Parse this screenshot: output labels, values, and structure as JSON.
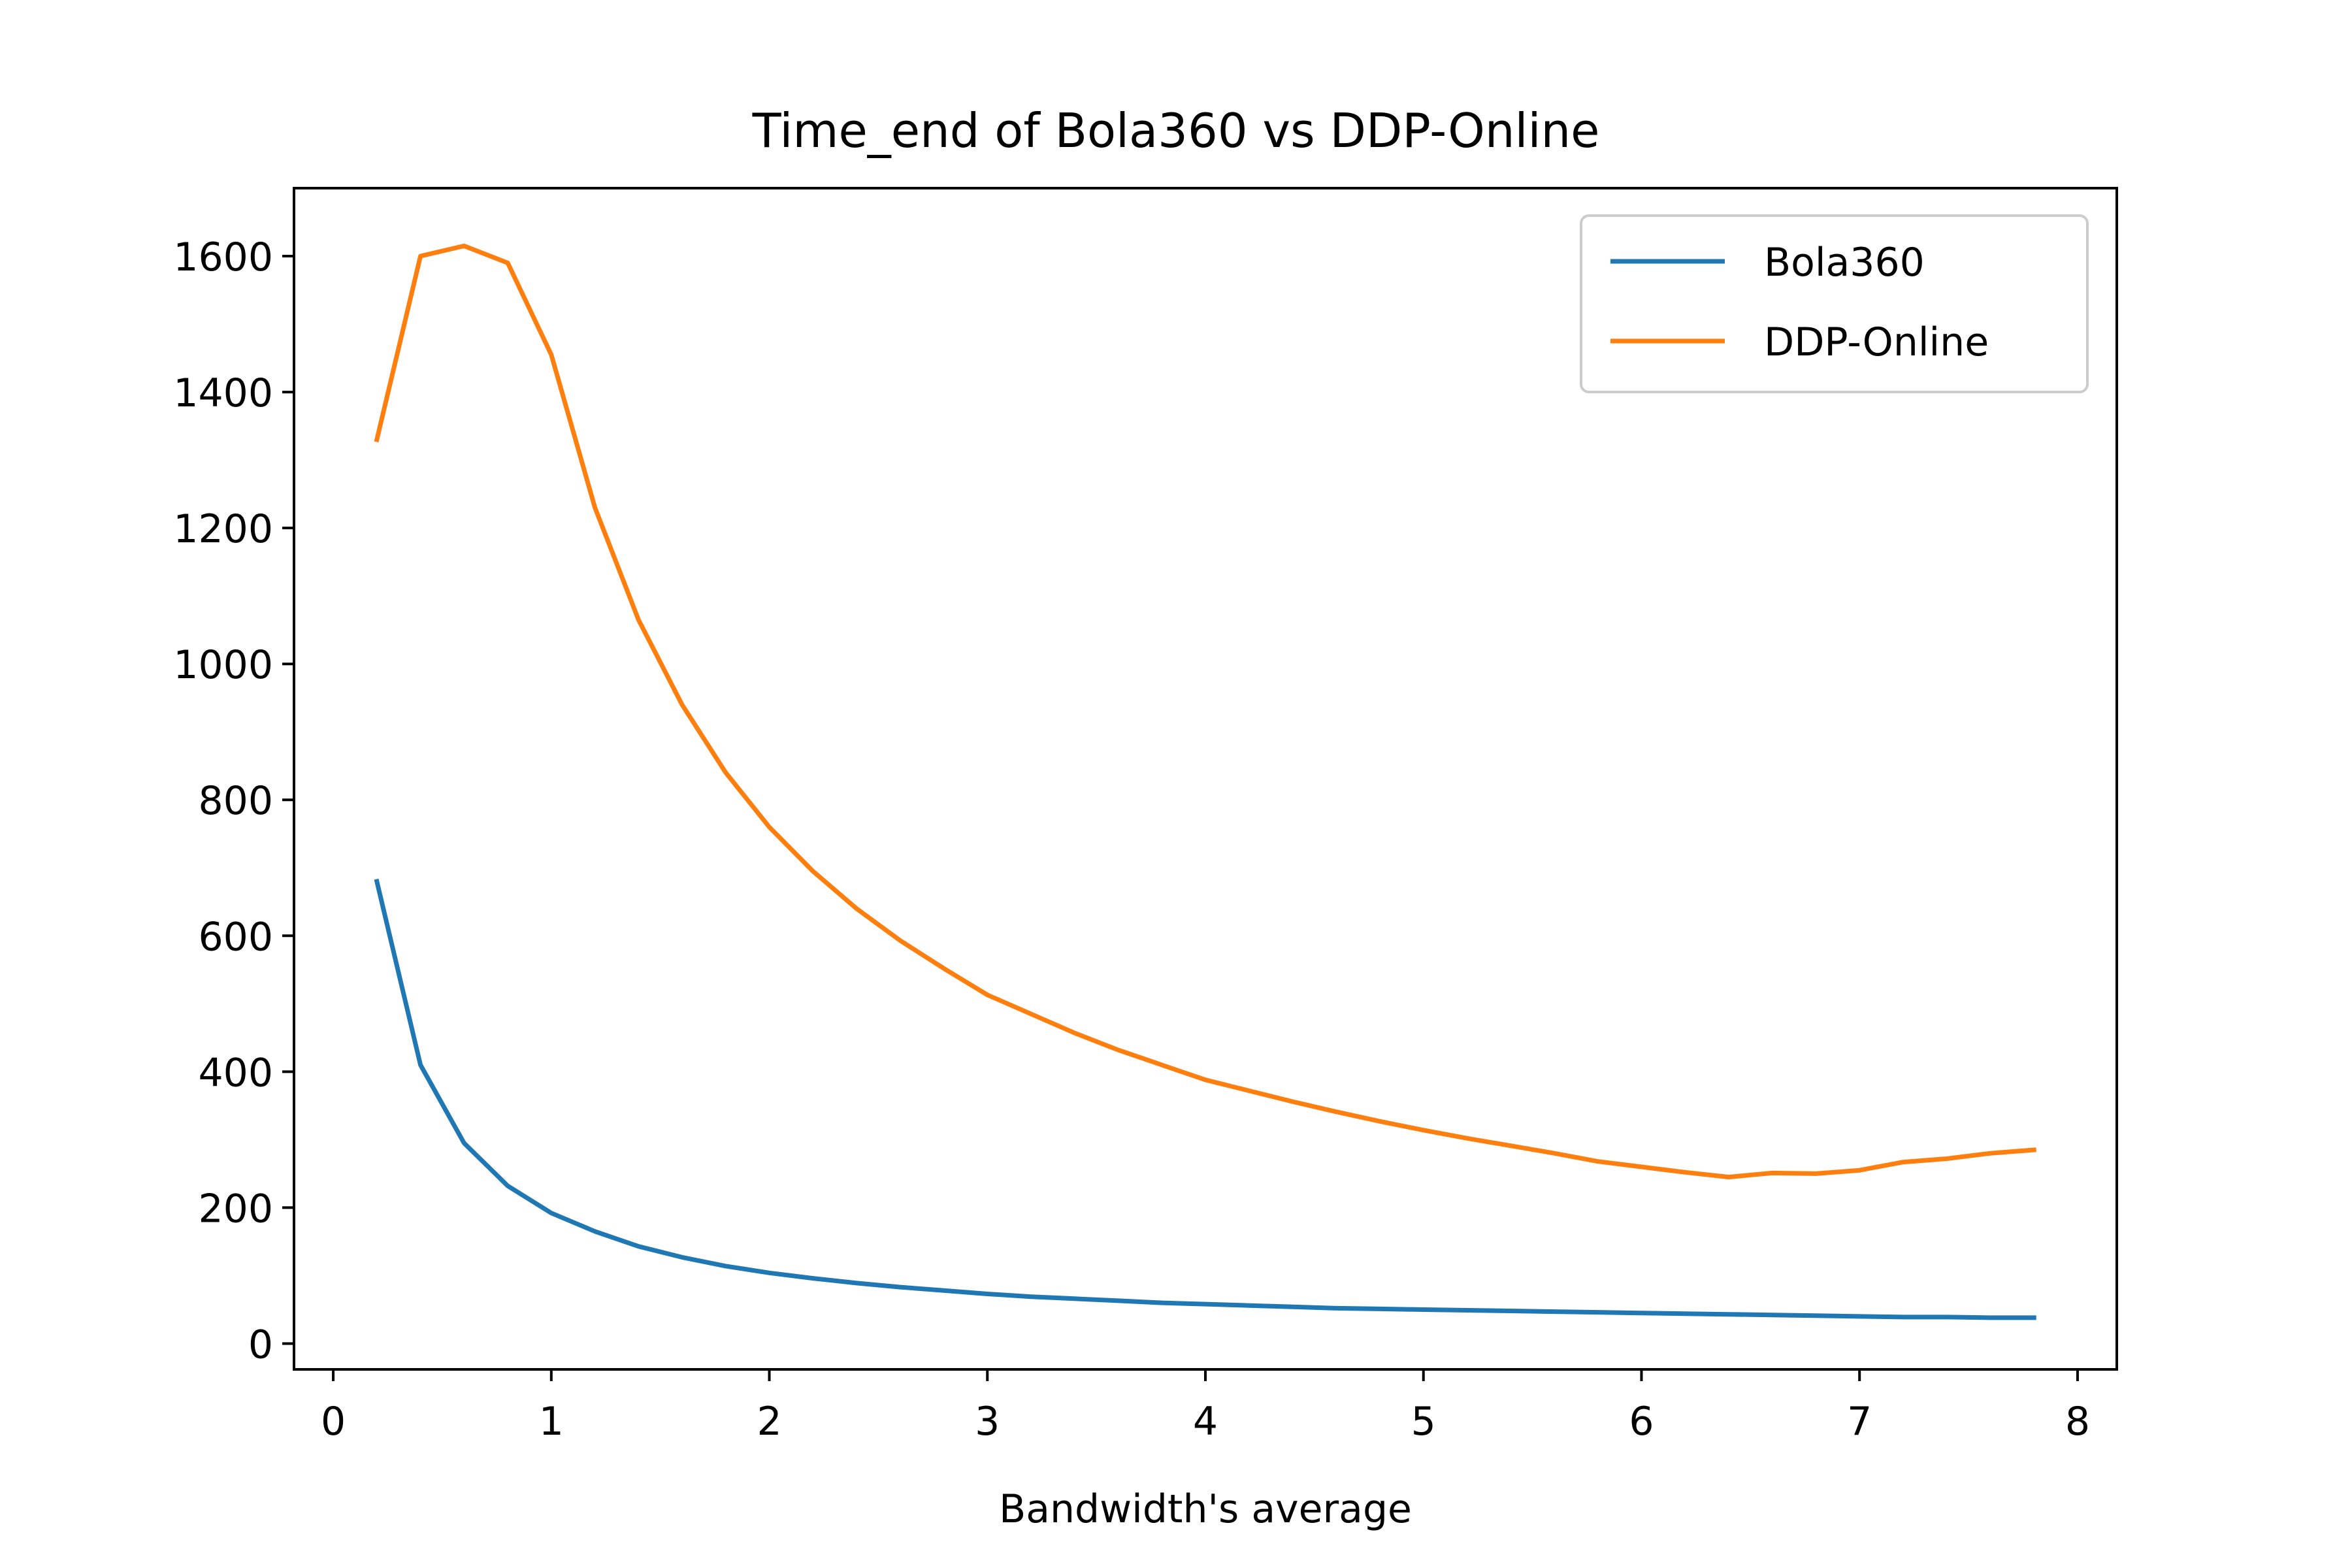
{
  "chart_data": {
    "type": "line",
    "title": "Time_end of Bola360 vs DDP-Online",
    "xlabel": "Bandwidth's average",
    "ylabel": "",
    "xlim": [
      -0.18,
      8.18
    ],
    "ylim": [
      -38,
      1700
    ],
    "xticks": [
      0,
      1,
      2,
      3,
      4,
      5,
      6,
      7,
      8
    ],
    "yticks": [
      0,
      200,
      400,
      600,
      800,
      1000,
      1200,
      1400,
      1600
    ],
    "grid": false,
    "legend_position": "upper right",
    "x": [
      0.2,
      0.4,
      0.6,
      0.8,
      1.0,
      1.2,
      1.4,
      1.6,
      1.8,
      2.0,
      2.2,
      2.4,
      2.6,
      2.8,
      3.0,
      3.2,
      3.4,
      3.6,
      3.8,
      4.0,
      4.2,
      4.4,
      4.6,
      4.8,
      5.0,
      5.2,
      5.4,
      5.6,
      5.8,
      6.0,
      6.2,
      6.4,
      6.6,
      6.8,
      7.0,
      7.2,
      7.4,
      7.6,
      7.8
    ],
    "series": [
      {
        "name": "Bola360",
        "color": "#1f77b4",
        "values": [
          680,
          410,
          295,
          232,
          192,
          165,
          143,
          127,
          114,
          104,
          96,
          89,
          83,
          78,
          73,
          69,
          66,
          63,
          60,
          58,
          56,
          54,
          52,
          51,
          50,
          49,
          48,
          47,
          46,
          45,
          44,
          43,
          42,
          41,
          40,
          39,
          39,
          38,
          38
        ]
      },
      {
        "name": "DDP-Online",
        "color": "#ff7f0e",
        "values": [
          1330,
          1600,
          1615,
          1590,
          1455,
          1230,
          1065,
          940,
          840,
          760,
          695,
          640,
          593,
          552,
          513,
          485,
          457,
          432,
          410,
          388,
          372,
          356,
          341,
          327,
          314,
          302,
          291,
          280,
          268,
          260,
          252,
          245,
          251,
          250,
          255,
          267,
          272,
          280,
          285
        ]
      }
    ]
  }
}
